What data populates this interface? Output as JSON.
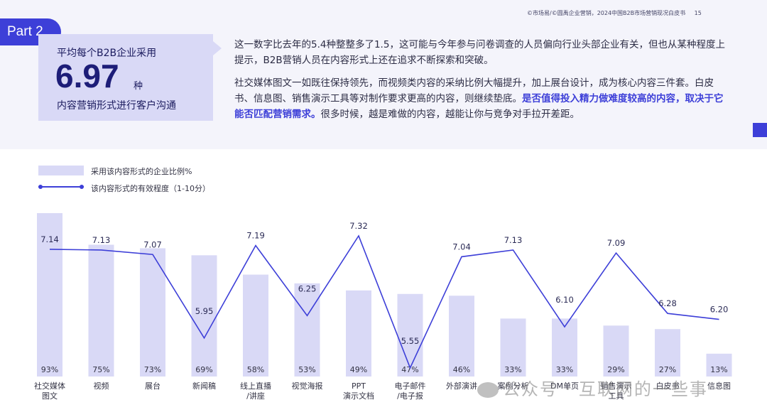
{
  "header": {
    "source": "©市场易/©圆禹企业营销，2024中国B2B市场营销现况白皮书",
    "page_number": "15"
  },
  "part_label": "Part 2",
  "stat": {
    "line1": "平均每个B2B企业采用",
    "number": "6.97",
    "unit": "种",
    "line2": "内容营销形式进行客户沟通"
  },
  "paragraphs": {
    "p1": "这一数字比去年的5.4种整整多了1.5，这可能与今年参与问卷调查的人员偏向行业头部企业有关，但也从某种程度上提示，B2B营销人员在内容形式上还在追求不断探索和突破。",
    "p2_a": "社交媒体图文一如既往保持领先，而视频类内容的采纳比例大幅提升，加上展台设计，成为核心内容三件套。白皮书、信息图、销售演示工具等对制作要求更高的内容，则继续垫底。",
    "p2_b": "是否值得投入精力做难度较高的内容，取决于它能否匹配营销需求。",
    "p2_c": "很多时候，越是难做的内容，越能让你与竞争对手拉开差距。"
  },
  "legend": {
    "bar_label": "采用该内容形式的企业比例%",
    "line_label": "该内容形式的有效程度（1-10分）"
  },
  "watermark": "公众号 · 互联网的一些事",
  "colors": {
    "accent": "#3d3fd8",
    "bar": "#d9d9f6",
    "stat_bg": "#d9d9f6",
    "top_bg": "#f4f4fb"
  },
  "chart_data": {
    "type": "bar",
    "categories": [
      [
        "社交媒体",
        "图文"
      ],
      [
        "视频"
      ],
      [
        "展台"
      ],
      [
        "新闻稿"
      ],
      [
        "线上直播",
        "/讲座"
      ],
      [
        "视觉海报"
      ],
      [
        "PPT",
        "演示文档"
      ],
      [
        "电子邮件",
        "/电子报"
      ],
      [
        "外部演讲"
      ],
      [
        "案例分析"
      ],
      [
        "DM单页"
      ],
      [
        "销售演示",
        "工具"
      ],
      [
        "白皮书"
      ],
      [
        "信息图"
      ]
    ],
    "series": [
      {
        "name": "采用该内容形式的企业比例%",
        "type": "bar",
        "values": [
          93,
          75,
          73,
          69,
          58,
          53,
          49,
          47,
          46,
          33,
          33,
          29,
          27,
          13
        ],
        "labels": [
          "93%",
          "75%",
          "73%",
          "69%",
          "58%",
          "53%",
          "49%",
          "47%",
          "46%",
          "33%",
          "33%",
          "29%",
          "27%",
          "13%"
        ]
      },
      {
        "name": "该内容形式的有效程度（1-10分）",
        "type": "line",
        "values": [
          7.14,
          7.13,
          7.07,
          5.95,
          7.19,
          6.25,
          7.32,
          5.55,
          7.04,
          7.13,
          6.1,
          7.09,
          6.28,
          6.2
        ],
        "labels": [
          "7.14",
          "7.13",
          "7.07",
          "5.95",
          "7.19",
          "6.25",
          "7.32",
          "5.55",
          "7.04",
          "7.13",
          "6.10",
          "7.09",
          "6.28",
          "6.20"
        ]
      }
    ]
  }
}
